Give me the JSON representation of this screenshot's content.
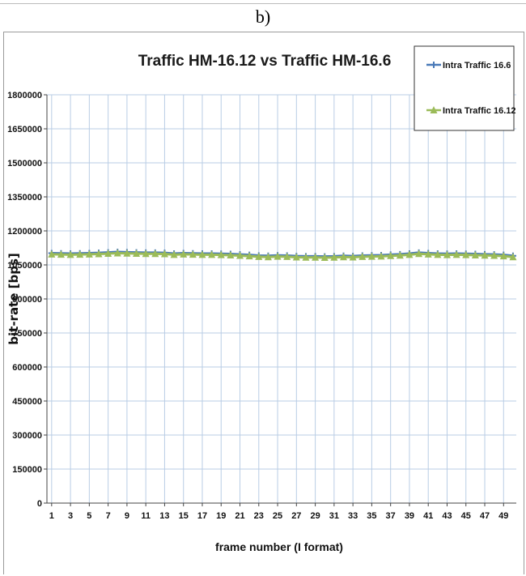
{
  "panel": {
    "label": "b)"
  },
  "colors": {
    "series_1": "#4a7ab8",
    "series_2": "#9bbb59",
    "grid": "#b9cde5"
  },
  "chart_data": {
    "type": "line",
    "title": "Traffic HM-16.12 vs Traffic HM-16.6",
    "xlabel": "frame number (I format)",
    "ylabel": "bit-rate [bps]",
    "ylim": [
      0,
      1800000
    ],
    "yticks": [
      0,
      150000,
      300000,
      450000,
      600000,
      750000,
      900000,
      1050000,
      1200000,
      1350000,
      1500000,
      1650000,
      1800000
    ],
    "ytick_labels": [
      "0",
      "150000",
      "300000",
      "450000",
      "600000",
      "750000",
      "900000",
      "1050000",
      "1200000",
      "1350000",
      "1500000",
      "1650000",
      "1800000"
    ],
    "x": [
      1,
      2,
      3,
      4,
      5,
      6,
      7,
      8,
      9,
      10,
      11,
      12,
      13,
      14,
      15,
      16,
      17,
      18,
      19,
      20,
      21,
      22,
      23,
      24,
      25,
      26,
      27,
      28,
      29,
      30,
      31,
      32,
      33,
      34,
      35,
      36,
      37,
      38,
      39,
      40,
      41,
      42,
      43,
      44,
      45,
      46,
      47,
      48,
      49,
      50
    ],
    "xtick_labels": [
      "1",
      "3",
      "5",
      "7",
      "9",
      "11",
      "13",
      "15",
      "17",
      "19",
      "21",
      "23",
      "25",
      "27",
      "29",
      "31",
      "33",
      "35",
      "37",
      "39",
      "41",
      "43",
      "45",
      "47",
      "49"
    ],
    "grid": true,
    "legend_position": "top-right",
    "series": [
      {
        "name": "Intra Traffic 16.6",
        "color": "#4a7ab8",
        "marker": "plus",
        "values": [
          1102000,
          1101000,
          1100000,
          1101000,
          1102000,
          1103000,
          1105000,
          1107000,
          1106000,
          1105000,
          1104000,
          1104000,
          1103000,
          1100000,
          1102000,
          1101000,
          1100000,
          1100000,
          1099000,
          1098000,
          1096000,
          1094000,
          1091000,
          1090000,
          1092000,
          1091000,
          1089000,
          1088000,
          1088000,
          1087000,
          1088000,
          1090000,
          1089000,
          1091000,
          1092000,
          1093000,
          1095000,
          1097000,
          1100000,
          1104000,
          1102000,
          1100000,
          1099000,
          1100000,
          1099000,
          1098000,
          1097000,
          1096000,
          1094000,
          1090000
        ]
      },
      {
        "name": "Intra Traffic 16.12",
        "color": "#9bbb59",
        "marker": "triangle",
        "values": [
          1097000,
          1096000,
          1095000,
          1096000,
          1097000,
          1098000,
          1100000,
          1102000,
          1101000,
          1100000,
          1099000,
          1099000,
          1098000,
          1095000,
          1097000,
          1096000,
          1095000,
          1095000,
          1094000,
          1093000,
          1091000,
          1089000,
          1086000,
          1085000,
          1087000,
          1086000,
          1084000,
          1083000,
          1083000,
          1082000,
          1083000,
          1085000,
          1084000,
          1086000,
          1087000,
          1088000,
          1090000,
          1092000,
          1095000,
          1099000,
          1097000,
          1095000,
          1094000,
          1095000,
          1094000,
          1093000,
          1092000,
          1091000,
          1089000,
          1085000
        ]
      }
    ]
  }
}
